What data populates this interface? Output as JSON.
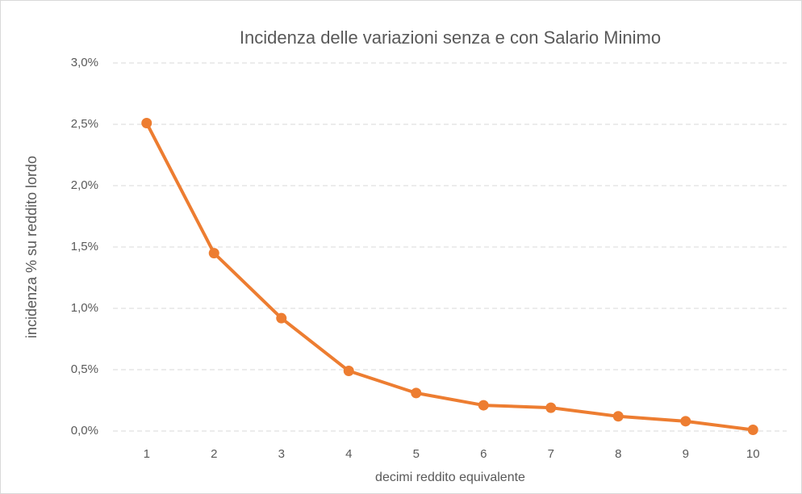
{
  "chart_data": {
    "type": "line",
    "title": "Incidenza delle variazioni senza e con Salario Minimo",
    "x_label": "decimi reddito equivalente",
    "y_label": "incidenza % su reddito lordo",
    "categories": [
      "1",
      "2",
      "3",
      "4",
      "5",
      "6",
      "7",
      "8",
      "9",
      "10"
    ],
    "values": [
      2.51,
      1.45,
      0.92,
      0.49,
      0.31,
      0.21,
      0.19,
      0.12,
      0.08,
      0.01
    ],
    "color": "#ed7d31",
    "ylim": [
      0,
      3
    ],
    "yticks": [
      {
        "value": 0,
        "label": "0,0%"
      },
      {
        "value": 0.5,
        "label": "0,5%"
      },
      {
        "value": 1,
        "label": "1,0%"
      },
      {
        "value": 1.5,
        "label": "1,5%"
      },
      {
        "value": 2,
        "label": "2,0%"
      },
      {
        "value": 2.5,
        "label": "2,5%"
      },
      {
        "value": 3,
        "label": "3,0%"
      }
    ],
    "grid": true
  }
}
